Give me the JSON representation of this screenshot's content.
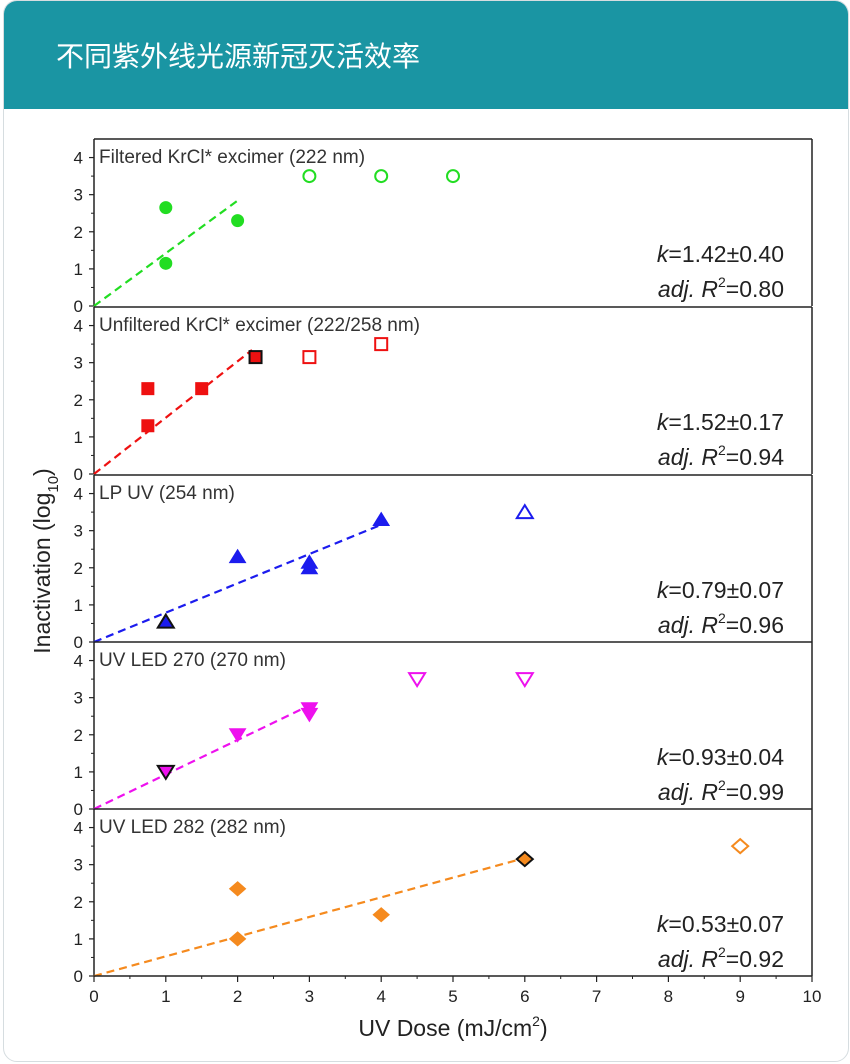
{
  "header": {
    "title": "不同紫外线光源新冠灭活效率"
  },
  "chart_data": {
    "type": "scatter",
    "xlabel": "UV Dose (mJ/cm²)",
    "xlabel_main": "UV Dose (mJ/cm",
    "xlabel_sup": "2",
    "xlabel_end": ")",
    "ylabel_main": "Inactivation (log",
    "ylabel_sub": "10",
    "ylabel_end": ")",
    "xlim": [
      0,
      10
    ],
    "ylim": [
      0,
      4.5
    ],
    "x_ticks": [
      "0",
      "1",
      "2",
      "3",
      "4",
      "5",
      "6",
      "7",
      "8",
      "9",
      "10"
    ],
    "y_ticks": [
      "0",
      "1",
      "2",
      "3",
      "4"
    ],
    "panels": [
      {
        "title": "Filtered KrCl* excimer (222 nm)",
        "color": "#22dd22",
        "marker": "circle",
        "k_value": "=1.42±0.40",
        "r2_value": "=0.80",
        "fit": {
          "x0": 0,
          "y0": 0,
          "x1": 2,
          "y1": 2.84
        },
        "filled": [
          [
            1.0,
            2.65
          ],
          [
            1.0,
            1.15
          ],
          [
            2.0,
            2.3
          ]
        ],
        "open": [
          [
            3.0,
            3.5
          ],
          [
            4.0,
            3.5
          ],
          [
            5.0,
            3.5
          ]
        ],
        "black": []
      },
      {
        "title": "Unfiltered KrCl* excimer (222/258 nm)",
        "color": "#ee1111",
        "marker": "square",
        "k_value": "=1.52±0.17",
        "r2_value": "=0.94",
        "fit": {
          "x0": 0,
          "y0": 0,
          "x1": 2.2,
          "y1": 3.34
        },
        "filled": [
          [
            0.75,
            2.3
          ],
          [
            0.75,
            1.3
          ],
          [
            1.5,
            2.3
          ]
        ],
        "open": [
          [
            3.0,
            3.15
          ],
          [
            4.0,
            3.5
          ]
        ],
        "black": [
          [
            2.25,
            3.15
          ]
        ]
      },
      {
        "title": "LP UV (254 nm)",
        "color": "#1c1cee",
        "marker": "triangle",
        "k_value": "=0.79±0.07",
        "r2_value": "=0.96",
        "fit": {
          "x0": 0,
          "y0": 0,
          "x1": 4,
          "y1": 3.16
        },
        "filled": [
          [
            2.0,
            2.3
          ],
          [
            3.0,
            2.15
          ],
          [
            3.0,
            2.0
          ],
          [
            4.0,
            3.3
          ]
        ],
        "open": [
          [
            6.0,
            3.5
          ]
        ],
        "black": [
          [
            1.0,
            0.55
          ]
        ]
      },
      {
        "title": "UV LED 270 (270 nm)",
        "color": "#ee11ee",
        "marker": "triangle-down",
        "k_value": "=0.93±0.04",
        "r2_value": "=0.99",
        "fit": {
          "x0": 0,
          "y0": 0,
          "x1": 3,
          "y1": 2.79
        },
        "filled": [
          [
            2.0,
            2.0
          ],
          [
            3.0,
            2.7
          ],
          [
            3.0,
            2.55
          ]
        ],
        "open": [
          [
            4.5,
            3.5
          ],
          [
            6.0,
            3.5
          ]
        ],
        "black": [
          [
            1.0,
            1.0
          ]
        ]
      },
      {
        "title": "UV LED 282 (282 nm)",
        "color": "#f58a1e",
        "marker": "diamond",
        "k_value": "=0.53±0.07",
        "r2_value": "=0.92",
        "fit": {
          "x0": 0,
          "y0": 0,
          "x1": 6,
          "y1": 3.18
        },
        "filled": [
          [
            2.0,
            2.35
          ],
          [
            2.0,
            1.0
          ],
          [
            4.0,
            1.65
          ]
        ],
        "open": [
          [
            9.0,
            3.5
          ]
        ],
        "black": [
          [
            6.0,
            3.15
          ]
        ]
      }
    ],
    "stat_k_label": "k",
    "stat_adj_label": "adj.",
    "stat_r_label": "R",
    "stat_r_sup": "2"
  }
}
